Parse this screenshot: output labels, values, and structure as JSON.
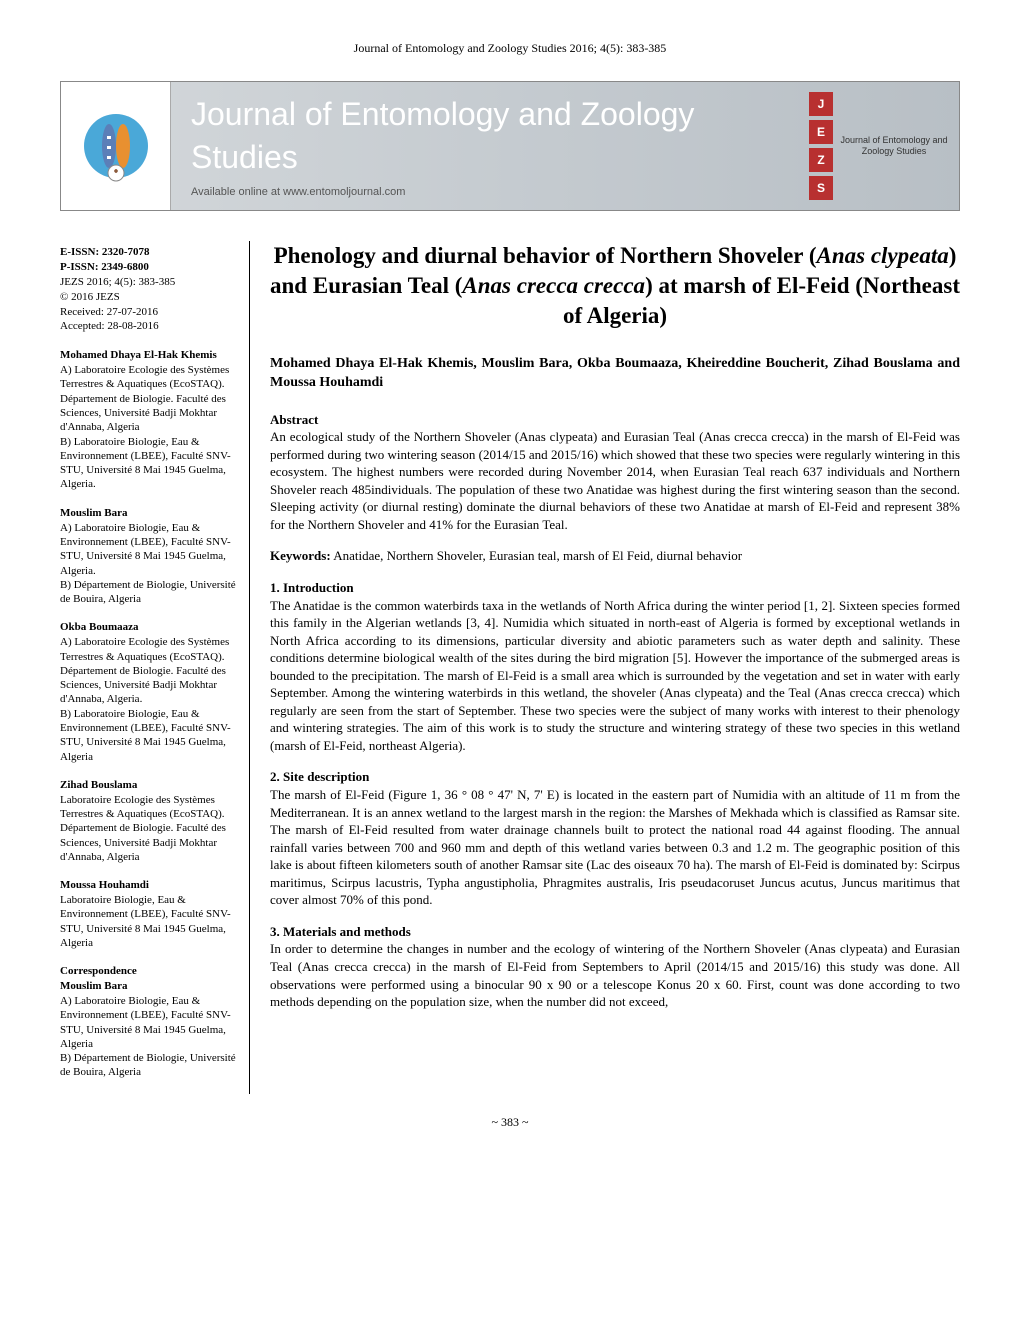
{
  "header_citation": "Journal of Entomology and Zoology Studies 2016; 4(5): 383-385",
  "banner": {
    "title": "Journal of Entomology and Zoology Studies",
    "subtitle": "Available online at www.entomoljournal.com",
    "badge_letters": [
      "J",
      "E",
      "Z",
      "S"
    ],
    "badge_text": "Journal of Entomology and Zoology Studies",
    "badge_color": "#b83030"
  },
  "meta": {
    "eissn_label": "E-ISSN: 2320-7078",
    "pissn_label": "P-ISSN: 2349-6800",
    "ref": "JEZS 2016; 4(5): 383-385",
    "copyright": "© 2016 JEZS",
    "received": "Received: 27-07-2016",
    "accepted": "Accepted: 28-08-2016"
  },
  "sidebar_authors": [
    {
      "name": "Mohamed Dhaya El-Hak Khemis",
      "affil": "A) Laboratoire Ecologie des Systèmes Terrestres & Aquatiques (EcoSTAQ). Département de Biologie. Faculté des Sciences, Université Badji Mokhtar d'Annaba, Algeria\nB) Laboratoire Biologie, Eau & Environnement (LBEE), Faculté SNV-STU, Université 8 Mai 1945 Guelma, Algeria."
    },
    {
      "name": "Mouslim Bara",
      "affil": "A) Laboratoire Biologie, Eau & Environnement (LBEE), Faculté SNV-STU, Université 8 Mai 1945 Guelma, Algeria.\nB) Département de Biologie, Université de Bouira, Algeria"
    },
    {
      "name": "Okba Boumaaza",
      "affil": "A) Laboratoire Ecologie des Systèmes Terrestres & Aquatiques (EcoSTAQ). Département de Biologie. Faculté des Sciences, Université Badji Mokhtar d'Annaba, Algeria.\nB) Laboratoire Biologie, Eau & Environnement (LBEE), Faculté SNV-STU, Université 8 Mai 1945 Guelma, Algeria"
    },
    {
      "name": "Zihad Bouslama",
      "affil": "Laboratoire Ecologie des Systèmes Terrestres & Aquatiques (EcoSTAQ). Département de Biologie. Faculté des Sciences, Université Badji Mokhtar d'Annaba, Algeria"
    },
    {
      "name": "Moussa Houhamdi",
      "affil": "Laboratoire Biologie, Eau & Environnement (LBEE), Faculté SNV-STU, Université 8 Mai 1945 Guelma, Algeria"
    }
  ],
  "correspondence": {
    "label": "Correspondence",
    "name": "Mouslim Bara",
    "affil": "A) Laboratoire Biologie, Eau & Environnement (LBEE), Faculté SNV-STU, Université 8 Mai 1945 Guelma, Algeria\nB) Département de Biologie, Université de Bouira, Algeria"
  },
  "article": {
    "title_parts": {
      "p1": "Phenology and diurnal behavior of Northern Shoveler (",
      "i1": "Anas clypeata",
      "p2": ") and Eurasian Teal (",
      "i2": "Anas crecca crecca",
      "p3": ") at marsh of El-Feid (Northeast of Algeria)"
    },
    "authors_line": "Mohamed Dhaya El-Hak Khemis, Mouslim Bara, Okba Boumaaza, Kheireddine Boucherit, Zihad Bouslama and Moussa Houhamdi",
    "abstract_heading": "Abstract",
    "abstract": "An ecological study of the Northern Shoveler (Anas clypeata) and Eurasian Teal (Anas crecca crecca) in the marsh of El-Feid was performed during two wintering season (2014/15 and 2015/16) which showed that these two species were regularly wintering in this ecosystem. The highest numbers were recorded during November 2014, when Eurasian Teal reach 637 individuals and Northern Shoveler reach 485individuals. The population of these two Anatidae was highest during the first wintering season than the second. Sleeping activity (or diurnal resting) dominate the diurnal behaviors of these two Anatidae at marsh of El-Feid and represent 38% for the Northern Shoveler and 41% for the Eurasian Teal.",
    "keywords_label": "Keywords:",
    "keywords": " Anatidae, Northern Shoveler, Eurasian teal, marsh of El Feid, diurnal behavior",
    "sections": [
      {
        "heading": "1. Introduction",
        "body": "The Anatidae is the common waterbirds taxa in the wetlands of North Africa during the winter period [1, 2]. Sixteen species formed this family in the Algerian wetlands [3, 4]. Numidia which situated in north-east of Algeria is formed by exceptional wetlands in North Africa according to its dimensions, particular diversity and abiotic parameters such as water depth and salinity. These conditions determine biological wealth of the sites during the bird migration [5]. However the importance of the submerged areas is bounded to the precipitation. The marsh of El-Feid is a small area which is surrounded by the vegetation and set in water with early September. Among the wintering waterbirds in this wetland, the shoveler (Anas clypeata) and the Teal (Anas crecca crecca) which regularly are seen from the start of September. These two species were the subject of many works with interest to their phenology and wintering strategies. The aim of this work is to study the structure and wintering strategy of these two species in this wetland (marsh of El-Feid, northeast Algeria)."
      },
      {
        "heading": "2. Site description",
        "body": "The marsh of El-Feid (Figure 1, 36 ° 08 ° 47' N, 7' E) is located in the eastern part of Numidia with an altitude of 11 m from the Mediterranean. It is an annex wetland to the largest marsh in the region: the Marshes of Mekhada which is classified as Ramsar site. The marsh of El-Feid resulted from water drainage channels built to protect the national road 44 against flooding. The annual rainfall varies between 700 and 960 mm and depth of this wetland varies between 0.3 and 1.2 m. The geographic position of this lake is about fifteen kilometers south of another Ramsar site (Lac des oiseaux 70 ha). The marsh of El-Feid is dominated by: Scirpus maritimus, Scirpus lacustris, Typha angustipholia, Phragmites australis, Iris pseudacoruset Juncus acutus, Juncus maritimus that cover almost 70% of this pond."
      },
      {
        "heading": "3. Materials and methods",
        "body": "In order to determine the changes in number and the ecology of wintering of the Northern Shoveler (Anas clypeata) and Eurasian Teal (Anas crecca crecca) in the marsh of El-Feid from Septembers to April (2014/15 and 2015/16) this study was done. All observations were performed using a binocular 90 x 90 or a telescope Konus 20 x 60. First, count was done according to two methods depending on the population size, when the number did not exceed,"
      }
    ]
  },
  "page_number": "~ 383 ~"
}
